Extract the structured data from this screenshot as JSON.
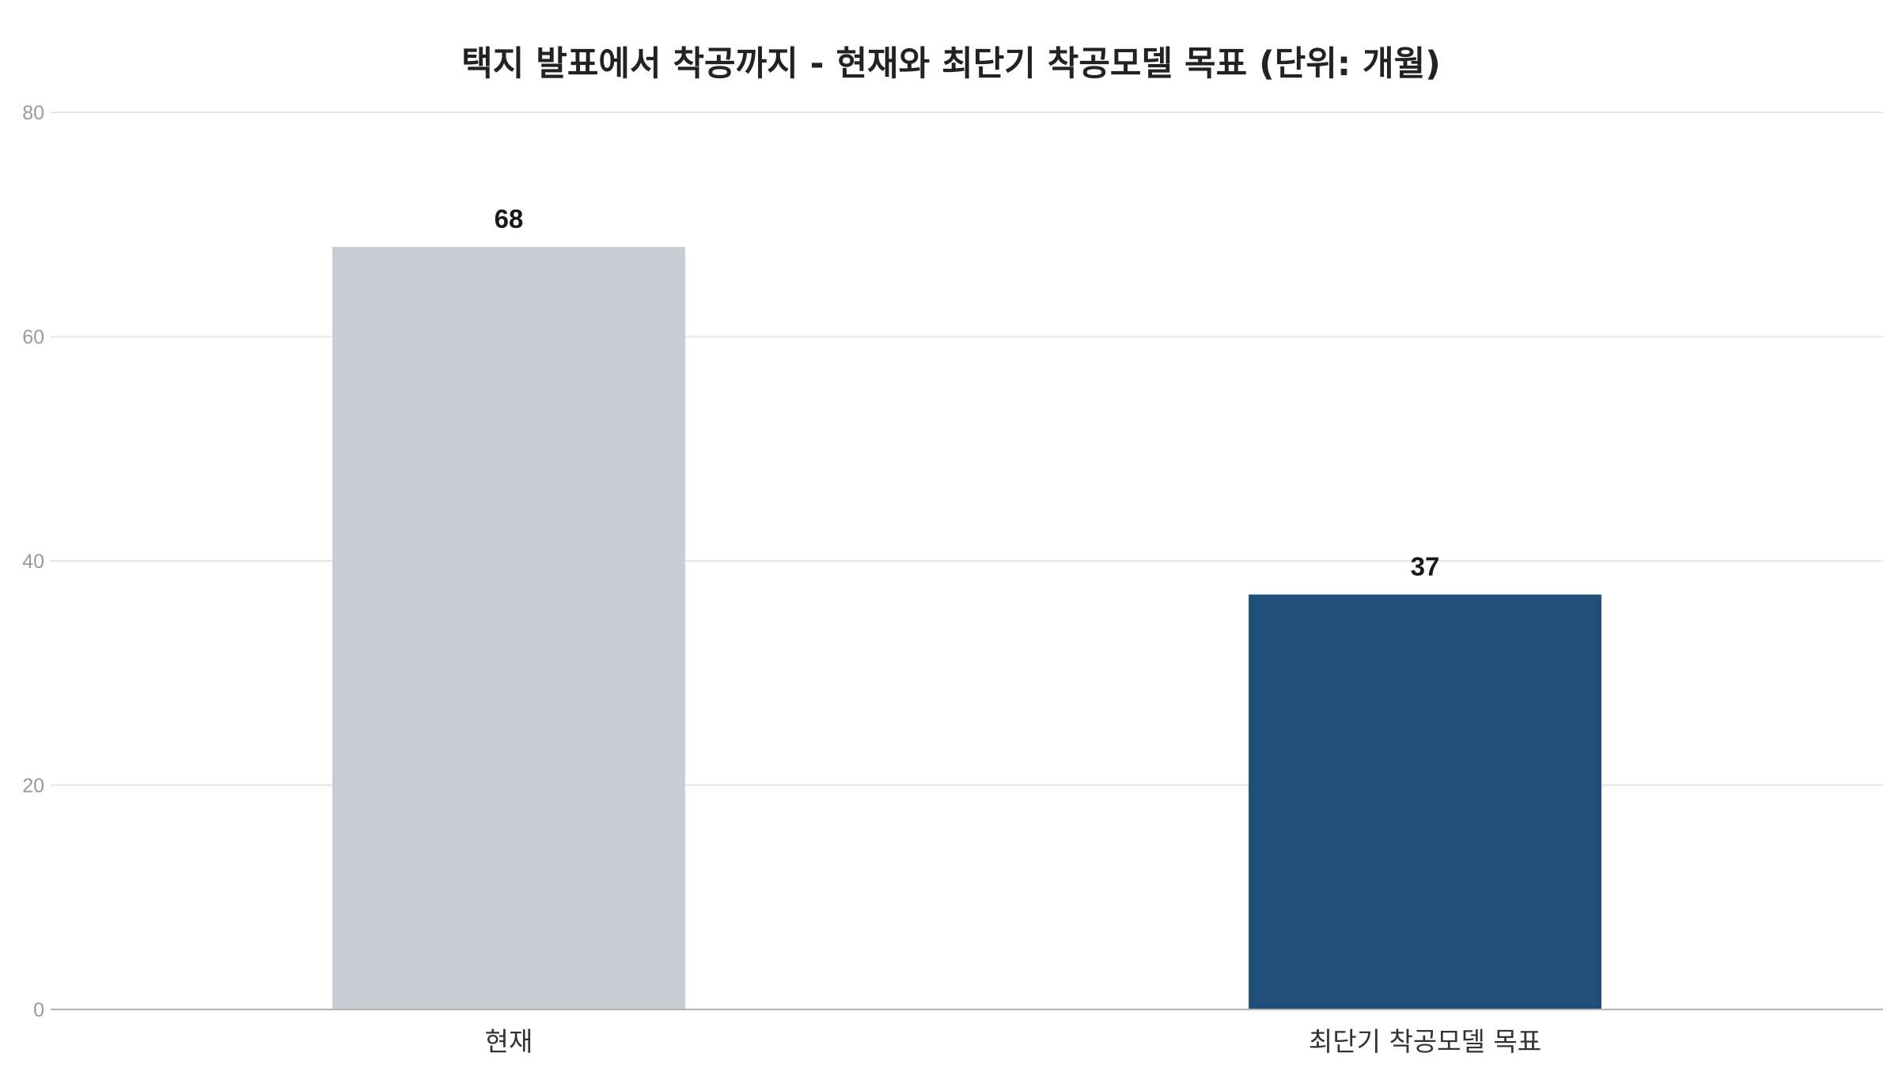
{
  "chart_data": {
    "type": "bar",
    "title": "택지 발표에서 착공까지 - 현재와 최단기 착공모델 목표 (단위: 개월)",
    "categories": [
      "현재",
      "최단기 착공모델 목표"
    ],
    "values": [
      68,
      37
    ],
    "data_labels": [
      "68",
      "37"
    ],
    "bar_colors": [
      "#c8ccd4",
      "#1f4e79"
    ],
    "ylim": [
      0,
      80
    ],
    "yticks": [
      0,
      20,
      40,
      60,
      80
    ],
    "ytick_labels": [
      "0",
      "20",
      "40",
      "60",
      "80"
    ],
    "grid": true,
    "legend": "none"
  }
}
